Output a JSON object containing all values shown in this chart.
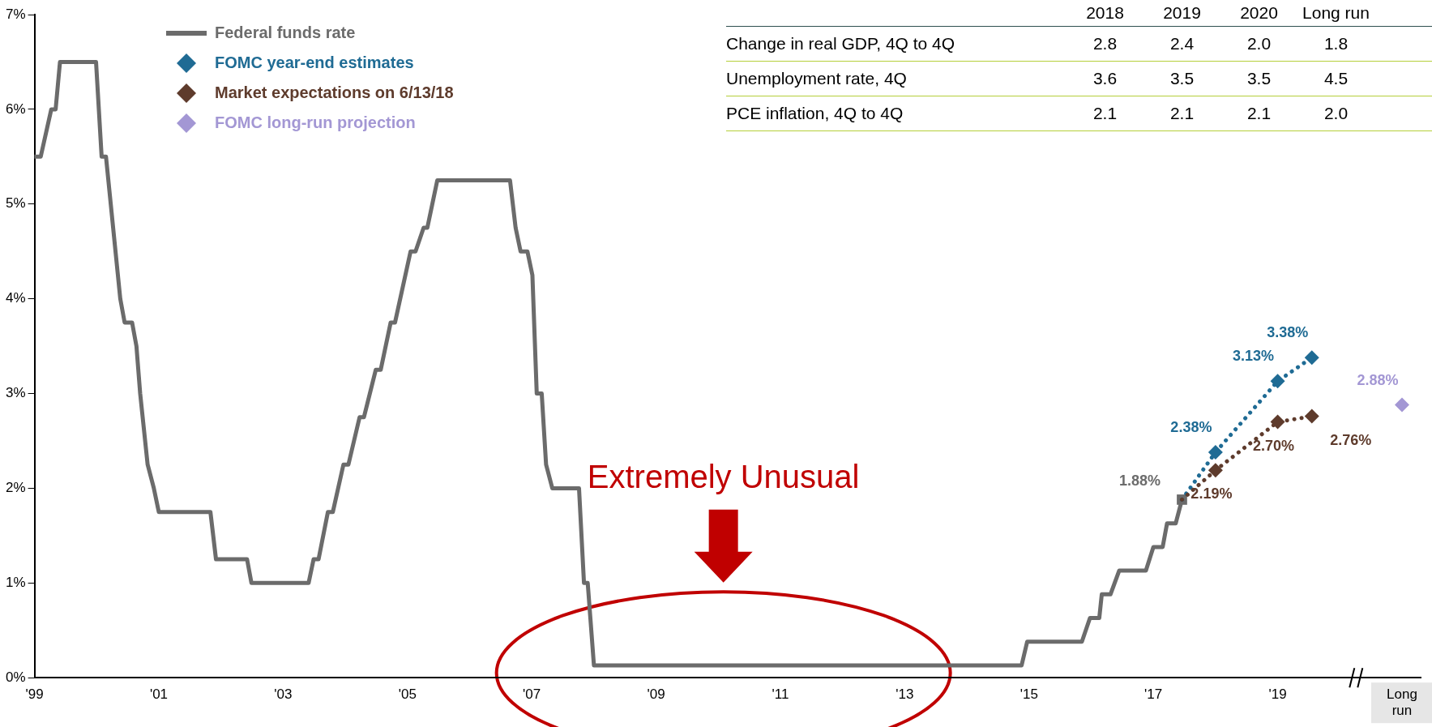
{
  "chart_data": [
    {
      "type": "line",
      "legend": "top left",
      "grid": false,
      "xlim": [
        1999,
        2021.3
      ],
      "ylim": [
        0,
        7
      ],
      "xticks": [
        {
          "value": 1999,
          "label": "'99"
        },
        {
          "value": 2001,
          "label": "'01"
        },
        {
          "value": 2003,
          "label": "'03"
        },
        {
          "value": 2005,
          "label": "'05"
        },
        {
          "value": 2007,
          "label": "'07"
        },
        {
          "value": 2009,
          "label": "'09"
        },
        {
          "value": 2011,
          "label": "'11"
        },
        {
          "value": 2013,
          "label": "'13"
        },
        {
          "value": 2015,
          "label": "'15"
        },
        {
          "value": 2017,
          "label": "'17"
        },
        {
          "value": 2019,
          "label": "'19"
        },
        {
          "value": 2021,
          "label": "Long run"
        }
      ],
      "yticks": [
        {
          "value": 0,
          "label": "0%"
        },
        {
          "value": 1,
          "label": "1%"
        },
        {
          "value": 2,
          "label": "2%"
        },
        {
          "value": 3,
          "label": "3%"
        },
        {
          "value": 4,
          "label": "4%"
        },
        {
          "value": 5,
          "label": "5%"
        },
        {
          "value": 6,
          "label": "6%"
        },
        {
          "value": 7,
          "label": "7%"
        }
      ],
      "annotations": [
        "Extremely Unusual"
      ],
      "series": [
        {
          "name": "Federal funds rate",
          "marker": "none",
          "color": "#6b6b6b",
          "x": [
            1999.0,
            1999.1,
            1999.27,
            1999.34,
            1999.41,
            1999.99,
            2000.08,
            2000.15,
            2000.38,
            2000.45,
            2000.57,
            2000.64,
            2000.7,
            2000.82,
            2000.92,
            2001.0,
            2001.83,
            2001.92,
            2002.42,
            2002.49,
            2003.41,
            2003.49,
            2003.57,
            2003.72,
            2003.8,
            2003.97,
            2004.05,
            2004.23,
            2004.3,
            2004.49,
            2004.57,
            2004.73,
            2004.8,
            2005.05,
            2005.13,
            2005.26,
            2005.32,
            2005.48,
            2006.65,
            2006.74,
            2006.82,
            2006.93,
            2007.01,
            2007.08,
            2007.16,
            2007.23,
            2007.33,
            2007.76,
            2007.84,
            2007.9,
            2008.0,
            2014.88,
            2014.97,
            2015.85,
            2015.98,
            2016.13,
            2016.17,
            2016.31,
            2016.45,
            2016.88,
            2017.0,
            2017.15,
            2017.22,
            2017.36,
            2017.46
          ],
          "values": [
            5.5,
            5.5,
            6.0,
            6.0,
            6.5,
            6.5,
            5.5,
            5.5,
            4.0,
            3.75,
            3.75,
            3.5,
            3.0,
            2.25,
            2.0,
            1.75,
            1.75,
            1.25,
            1.25,
            1.0,
            1.0,
            1.25,
            1.25,
            1.75,
            1.75,
            2.25,
            2.25,
            2.75,
            2.75,
            3.25,
            3.25,
            3.75,
            3.75,
            4.5,
            4.5,
            4.75,
            4.75,
            5.25,
            5.25,
            4.75,
            4.5,
            4.5,
            4.25,
            3.0,
            3.0,
            2.25,
            2.0,
            2.0,
            1.0,
            1.0,
            0.13,
            0.13,
            0.38,
            0.38,
            0.63,
            0.63,
            0.88,
            0.88,
            1.13,
            1.13,
            1.38,
            1.38,
            1.63,
            1.63,
            1.88
          ]
        },
        {
          "type": "scatter",
          "marker": "square",
          "color": "#6b6b6b",
          "x": [
            2017.46
          ],
          "values": [
            1.88
          ],
          "value_labels": [
            "1.88%"
          ]
        },
        {
          "name": "FOMC year-end estimates",
          "type": "line",
          "marker": "diamond",
          "line_style": "dotted",
          "color": "#1f6b94",
          "x": [
            2017.46,
            2018.0,
            2019.0,
            2019.55
          ],
          "values": [
            1.88,
            2.38,
            3.13,
            3.38
          ],
          "value_labels": [
            null,
            "2.38%",
            "3.13%",
            "3.38%"
          ]
        },
        {
          "name": "Market expectations on  6/13/18",
          "type": "line",
          "marker": "diamond",
          "line_style": "dotted",
          "color": "#5e3b2c",
          "x": [
            2017.46,
            2018.0,
            2019.0,
            2019.55
          ],
          "values": [
            1.88,
            2.19,
            2.7,
            2.76
          ],
          "value_labels": [
            null,
            "2.19%",
            "2.70%",
            "2.76%"
          ]
        },
        {
          "name": "FOMC long-run projection",
          "type": "scatter",
          "marker": "diamond",
          "color": "#a397d4",
          "x": [
            2021
          ],
          "values": [
            2.88
          ],
          "value_labels": [
            "2.88%"
          ]
        }
      ]
    },
    {
      "type": "other",
      "annotations": [
        "2018",
        "2019",
        "2020",
        "Long run",
        "Change in real GDP, 4Q to 4Q",
        "2.8",
        "2.4",
        "2.0",
        "1.8",
        "Unemployment rate, 4Q",
        "3.6",
        "3.5",
        "3.5",
        "4.5",
        "PCE inflation, 4Q to 4Q",
        "2.1",
        "2.1",
        "2.1",
        "2.0"
      ]
    }
  ]
}
